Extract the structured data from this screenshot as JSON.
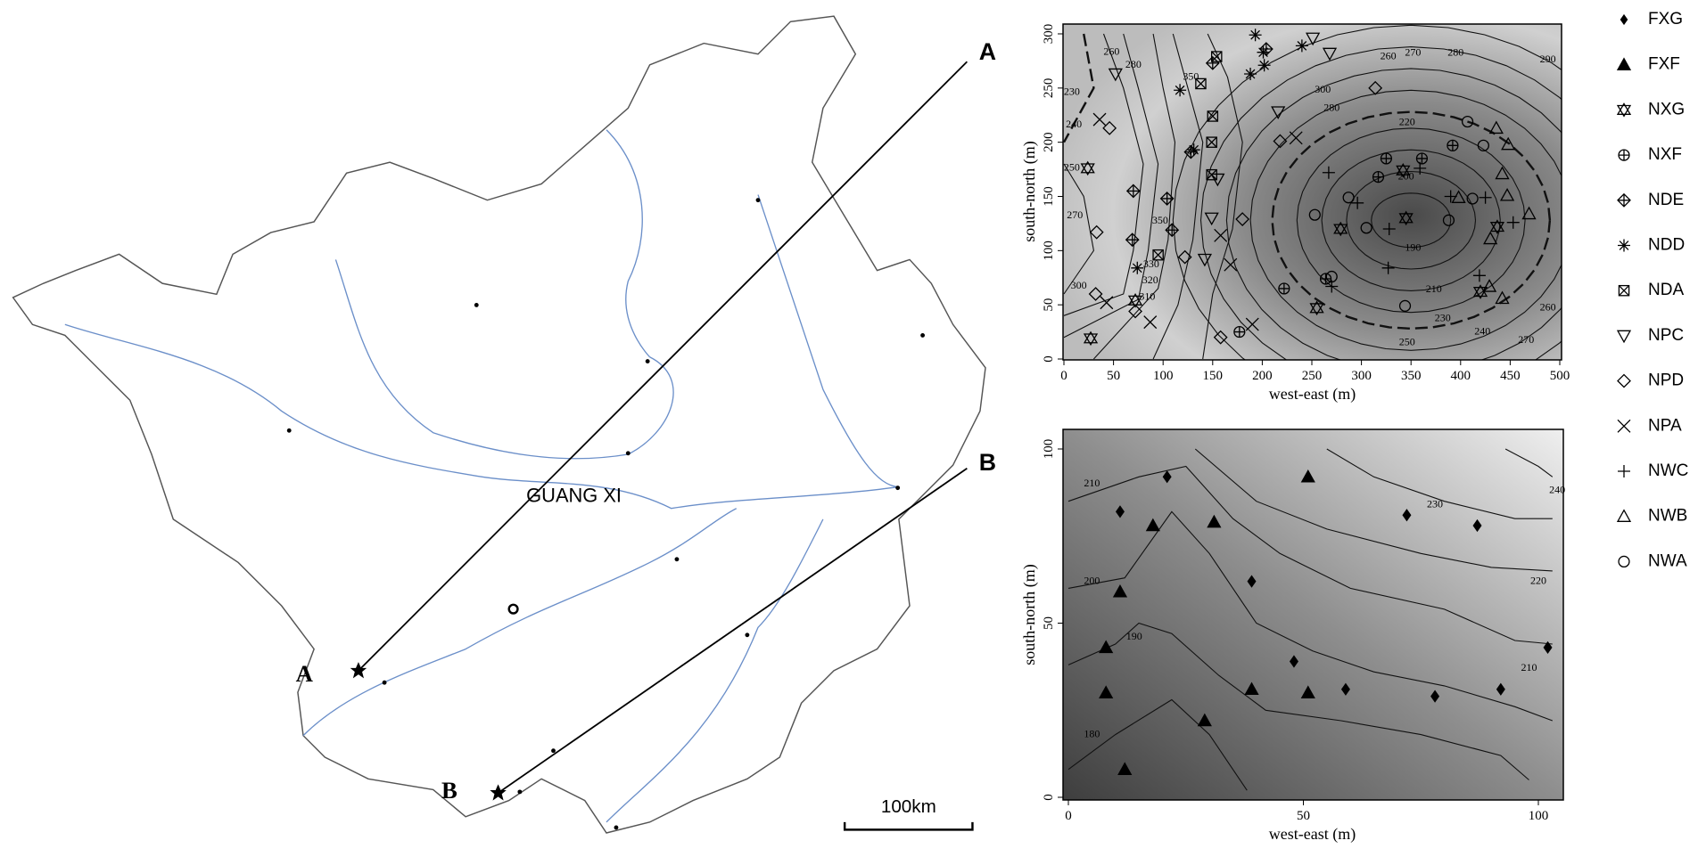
{
  "map": {
    "label_a_line": "A",
    "label_b_line": "B",
    "label_a_site": "A",
    "label_b_site": "B",
    "region": "GUANG XI",
    "scale": "100km"
  },
  "chart_data": [
    {
      "type": "contour",
      "xlabel": "west-east (m)",
      "ylabel": "south-north (m)",
      "xlim": [
        0,
        500
      ],
      "ylim": [
        0,
        300
      ],
      "xticks": [
        0,
        50,
        100,
        150,
        200,
        250,
        300,
        350,
        400,
        450,
        500
      ],
      "yticks": [
        0,
        50,
        100,
        150,
        200,
        250,
        300
      ],
      "contour_labels": [
        260,
        280,
        350,
        270,
        280,
        290,
        260,
        300,
        280,
        220,
        200,
        190,
        210,
        230,
        240,
        250,
        270,
        260,
        300,
        310,
        320,
        330,
        350,
        270,
        250,
        240,
        230
      ],
      "series": [
        {
          "name": "NXG",
          "marker": "hourglass",
          "x": [
            24,
            72,
            255,
            342,
            345,
            279,
            437,
            420,
            27
          ],
          "y": [
            176,
            54,
            47,
            174,
            130,
            120,
            122,
            62,
            19
          ]
        },
        {
          "name": "NXF",
          "marker": "circle-plus",
          "x": [
            222,
            177,
            325,
            361,
            392,
            264,
            317
          ],
          "y": [
            65,
            25,
            185,
            185,
            197,
            74,
            168
          ]
        },
        {
          "name": "NDE",
          "marker": "diamond-plus",
          "x": [
            204,
            150,
            128,
            104,
            109,
            70,
            69
          ],
          "y": [
            286,
            273,
            191,
            148,
            119,
            155,
            110
          ]
        },
        {
          "name": "NDD",
          "marker": "asterisk",
          "x": [
            193,
            201,
            202,
            188,
            117,
            131,
            74,
            240
          ],
          "y": [
            299,
            283,
            271,
            263,
            248,
            193,
            84,
            289
          ]
        },
        {
          "name": "NDA",
          "marker": "square-x",
          "x": [
            154,
            138,
            150,
            149,
            95,
            149
          ],
          "y": [
            279,
            254,
            224,
            170,
            96,
            200
          ]
        },
        {
          "name": "NPC",
          "marker": "triangle-down",
          "x": [
            251,
            268,
            52,
            216,
            155,
            149,
            142
          ],
          "y": [
            296,
            282,
            263,
            228,
            166,
            130,
            92
          ]
        },
        {
          "name": "NPD",
          "marker": "diamond-open",
          "x": [
            46,
            33,
            180,
            122,
            32,
            72,
            158,
            314,
            218
          ],
          "y": [
            213,
            117,
            129,
            94,
            60,
            44,
            20,
            250,
            201
          ]
        },
        {
          "name": "NPA",
          "marker": "cross",
          "x": [
            36,
            43,
            87,
            168,
            158,
            234,
            190
          ],
          "y": [
            221,
            52,
            34,
            87,
            114,
            204,
            32
          ]
        },
        {
          "name": "NWC",
          "marker": "plus",
          "x": [
            267,
            296,
            270,
            327,
            359,
            390,
            425,
            453,
            419,
            328
          ],
          "y": [
            172,
            144,
            67,
            84,
            176,
            150,
            149,
            126,
            77,
            120
          ]
        },
        {
          "name": "NWB",
          "marker": "triangle-open",
          "x": [
            436,
            448,
            442,
            447,
            469,
            430,
            429,
            442,
            398
          ],
          "y": [
            213,
            198,
            171,
            151,
            134,
            111,
            67,
            56,
            149
          ]
        },
        {
          "name": "NWA",
          "marker": "circle-open",
          "x": [
            407,
            423,
            412,
            388,
            287,
            253,
            270,
            344,
            305
          ],
          "y": [
            219,
            197,
            148,
            128,
            149,
            133,
            76,
            49,
            121
          ]
        }
      ]
    },
    {
      "type": "contour",
      "xlabel": "west-east (m)",
      "ylabel": "south-north  (m)",
      "xlim": [
        0,
        100
      ],
      "ylim": [
        0,
        100
      ],
      "xticks": [
        0,
        50,
        100
      ],
      "yticks": [
        0,
        50,
        100
      ],
      "contour_labels": [
        210,
        200,
        190,
        180,
        240,
        230,
        220,
        210
      ],
      "series": [
        {
          "name": "FXG",
          "marker": "diamond",
          "x": [
            21,
            11,
            72,
            87,
            39,
            102,
            48,
            59,
            78,
            92
          ],
          "y": [
            92,
            82,
            81,
            78,
            62,
            43,
            39,
            31,
            29,
            31
          ]
        },
        {
          "name": "FXF",
          "marker": "triangle",
          "x": [
            51,
            18,
            31,
            11,
            8,
            8,
            39,
            51,
            29,
            12
          ],
          "y": [
            92,
            78,
            79,
            59,
            43,
            30,
            31,
            30,
            22,
            8
          ]
        }
      ]
    }
  ]
}
